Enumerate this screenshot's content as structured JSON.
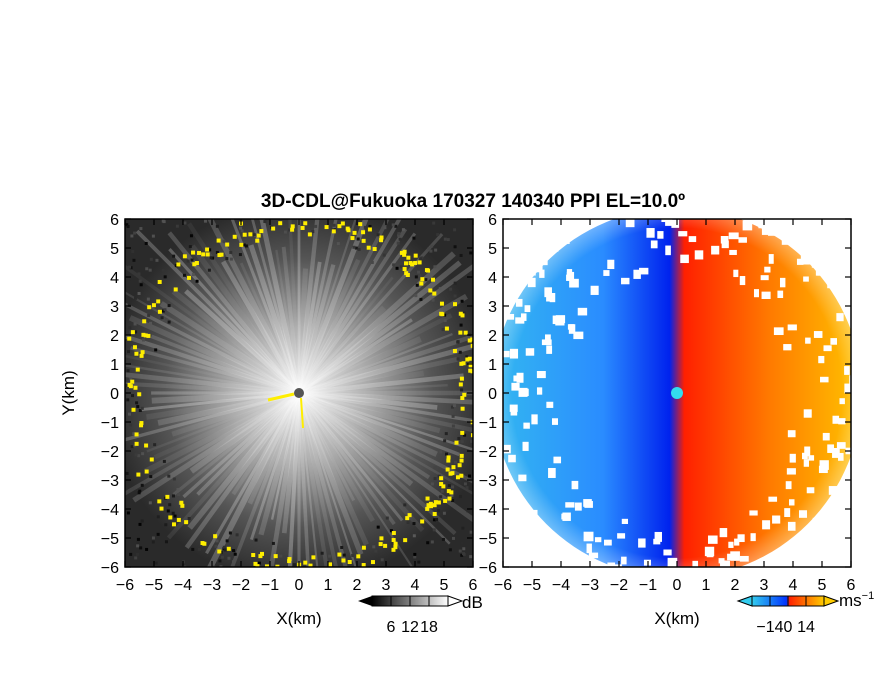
{
  "title": "3D-CDL@Fukuoka 170327 140340 PPI EL=10.0º",
  "chart_data": [
    {
      "type": "heatmap",
      "panel": "left",
      "xlabel": "X(km)",
      "ylabel": "Y(km)",
      "xlim": [
        -6,
        6
      ],
      "ylim": [
        -6,
        6
      ],
      "xticks": [
        "−6",
        "−5",
        "−4",
        "−3",
        "−2",
        "−1",
        "0",
        "1",
        "2",
        "3",
        "4",
        "5",
        "6"
      ],
      "yticks": [
        "6",
        "5",
        "4",
        "3",
        "2",
        "1",
        "0",
        "−1",
        "−2",
        "−3",
        "−4",
        "−5",
        "−6"
      ],
      "colorbar": {
        "unit": "dB",
        "ticks": [
          "6",
          "12",
          "18"
        ],
        "colormap": "grayscale",
        "colors": [
          "#000000",
          "#ffffff"
        ]
      },
      "marker_color": "#ffee00"
    },
    {
      "type": "heatmap",
      "panel": "right",
      "xlabel": "X(km)",
      "xlim": [
        -6,
        6
      ],
      "ylim": [
        -6,
        6
      ],
      "xticks": [
        "−6",
        "−5",
        "−4",
        "−3",
        "−2",
        "−1",
        "0",
        "1",
        "2",
        "3",
        "4",
        "5",
        "6"
      ],
      "yticks": [
        "6",
        "5",
        "4",
        "3",
        "2",
        "1",
        "0",
        "−1",
        "−2",
        "−3",
        "−4",
        "−5",
        "−6"
      ],
      "colorbar": {
        "unit": "ms",
        "unit_exponent": "−1",
        "ticks": [
          "−14",
          "0",
          "14"
        ],
        "colormap": "diverging",
        "colors": [
          "#33ccee",
          "#0033ff",
          "#ff2200",
          "#ffcc00"
        ]
      },
      "center_marker_color": "#33ddee"
    }
  ]
}
